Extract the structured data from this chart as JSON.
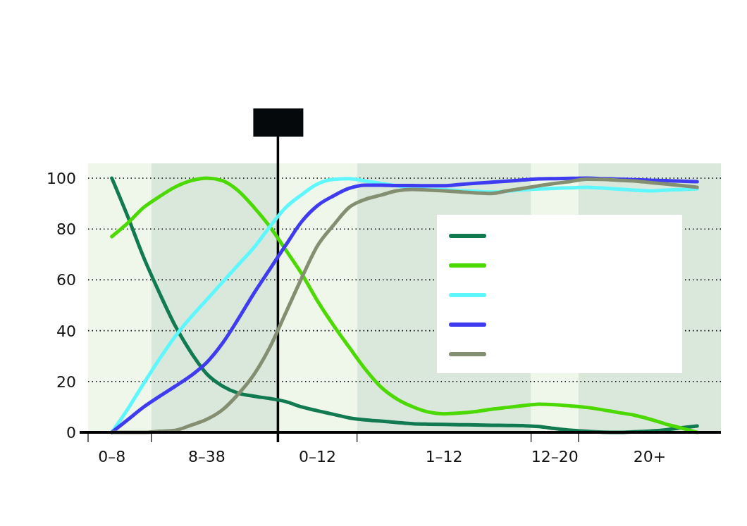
{
  "chart_data": {
    "type": "line",
    "ylim": [
      0,
      100
    ],
    "categories": [
      null,
      "0–8",
      null,
      null,
      null,
      null,
      null,
      "8–38",
      null,
      null,
      null,
      null,
      null,
      null,
      "0–12",
      null,
      null,
      null,
      null,
      null,
      null,
      null,
      "1–12",
      null,
      null,
      null,
      null,
      null,
      null,
      "12–20",
      null,
      null,
      null,
      null,
      null,
      "20+",
      null,
      null,
      null,
      null
    ],
    "yticks": [
      0,
      20,
      40,
      60,
      80,
      100
    ],
    "grid": "y",
    "line_style": "solid",
    "series": [
      {
        "color": "#127a50",
        "values": [
          null,
          100,
          85,
          69,
          55,
          42,
          31.5,
          23,
          18.2,
          15.4,
          14.2,
          13.3,
          12.1,
          10,
          8.5,
          7.1,
          5.7,
          4.9,
          4.4,
          3.9,
          3.4,
          3.2,
          3.1,
          3,
          2.9,
          2.8,
          2.7,
          2.6,
          2.3,
          1.5,
          0.8,
          0.4,
          0.1,
          0,
          0.2,
          0.5,
          1,
          1.8,
          2.5,
          null
        ]
      },
      {
        "color": "#4cd900",
        "values": [
          null,
          77,
          82.3,
          88.4,
          92.7,
          96.5,
          99,
          100,
          99,
          95,
          88.4,
          80.8,
          71.7,
          62.4,
          51.7,
          42.2,
          33.5,
          25,
          17.9,
          13.2,
          10.1,
          8,
          7.3,
          7.6,
          8.2,
          9.1,
          9.8,
          10.5,
          11.1,
          10.9,
          10.4,
          9.8,
          8.9,
          7.8,
          6.8,
          5.2,
          3.3,
          1.7,
          0,
          null
        ]
      },
      {
        "color": "#5ef7ff",
        "values": [
          null,
          0,
          9.1,
          19.1,
          28.8,
          37.7,
          45.3,
          52.2,
          59.1,
          66,
          72.8,
          81,
          88.5,
          93.5,
          97.7,
          99.5,
          99.8,
          98.9,
          97.9,
          97,
          96.1,
          95.6,
          95.4,
          95.1,
          94.8,
          94.5,
          94.9,
          95.4,
          95.8,
          96,
          96.2,
          96.4,
          96.1,
          95.7,
          95.3,
          95,
          95.3,
          95.5,
          95.8,
          null
        ]
      },
      {
        "color": "#3f3bf0",
        "values": [
          null,
          0,
          4.9,
          9.9,
          14.1,
          18.1,
          22.3,
          27.5,
          35.1,
          44.7,
          54.9,
          64.3,
          73.7,
          82.9,
          89.2,
          93,
          96,
          97.2,
          97.2,
          97.1,
          97.1,
          97,
          97,
          97.5,
          98,
          98.4,
          98.8,
          99.3,
          99.7,
          99.8,
          99.9,
          100,
          99.8,
          99.6,
          99.4,
          99.2,
          99,
          98.8,
          98.6,
          null
        ]
      },
      {
        "color": "#848f72",
        "values": [
          null,
          0,
          0,
          0,
          0.4,
          0.8,
          2.8,
          5.1,
          8.9,
          15.1,
          22.9,
          33.6,
          47.1,
          60.7,
          73.4,
          81.4,
          88.5,
          91.6,
          93.3,
          95,
          95.6,
          95.3,
          95,
          94.6,
          94.2,
          94,
          95,
          96,
          97,
          97.9,
          98.7,
          99.6,
          99.5,
          99.2,
          98.9,
          98.3,
          97.7,
          97.1,
          96.4,
          null
        ]
      }
    ]
  }
}
